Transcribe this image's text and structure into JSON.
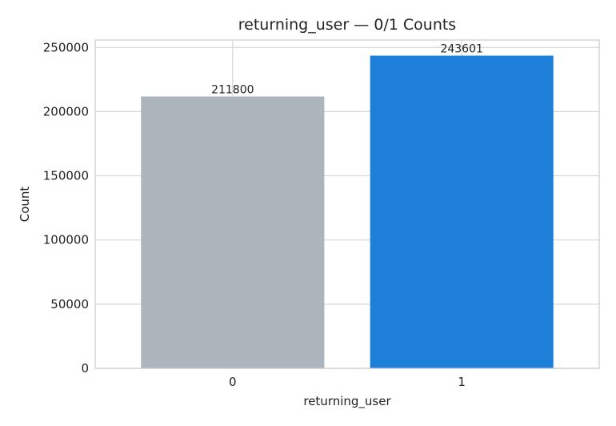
{
  "chart_data": {
    "type": "bar",
    "title": "returning_user — 0/1 Counts",
    "xlabel": "returning_user",
    "ylabel": "Count",
    "categories": [
      "0",
      "1"
    ],
    "values": [
      211800,
      243601
    ],
    "data_labels": [
      "211800",
      "243601"
    ],
    "bar_colors": [
      "#adb5bc",
      "#1e7fd8"
    ],
    "ylim": [
      0,
      255780
    ],
    "yticks": [
      0,
      50000,
      100000,
      150000,
      200000,
      250000
    ],
    "ytick_labels": [
      "0",
      "50000",
      "100000",
      "150000",
      "200000",
      "250000"
    ],
    "grid": true,
    "legend": "none"
  }
}
